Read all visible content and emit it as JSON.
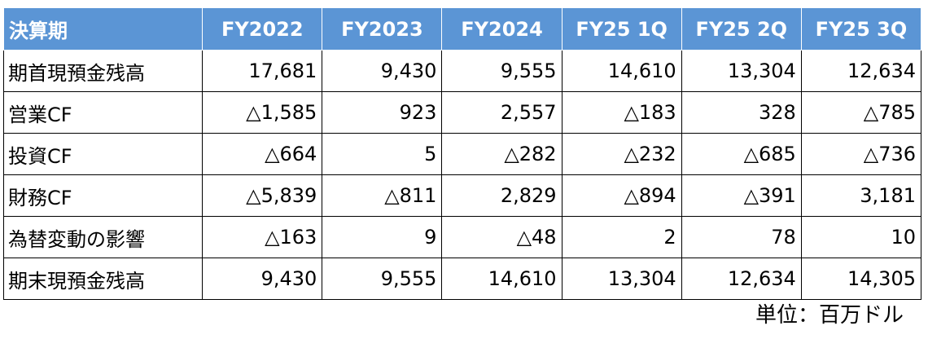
{
  "chart_data": {
    "type": "table",
    "columns": [
      "決算期",
      "FY2022",
      "FY2023",
      "FY2024",
      "FY25 1Q",
      "FY25 2Q",
      "FY25 3Q"
    ],
    "rows": [
      {
        "label": "期首現預金残高",
        "values": [
          "17,681",
          "9,430",
          "9,555",
          "14,610",
          "13,304",
          "12,634"
        ]
      },
      {
        "label": "営業CF",
        "values": [
          "△1,585",
          "923",
          "2,557",
          "△183",
          "328",
          "△785"
        ]
      },
      {
        "label": "投資CF",
        "values": [
          "△664",
          "5",
          "△282",
          "△232",
          "△685",
          "△736"
        ]
      },
      {
        "label": "財務CF",
        "values": [
          "△5,839",
          "△811",
          "2,829",
          "△894",
          "△391",
          "3,181"
        ]
      },
      {
        "label": "為替変動の影響",
        "values": [
          "△163",
          "9",
          "△48",
          "2",
          "78",
          "10"
        ]
      },
      {
        "label": "期末現預金残高",
        "values": [
          "9,430",
          "9,555",
          "14,610",
          "13,304",
          "12,634",
          "14,305"
        ]
      }
    ],
    "unit_note": "単位：百万ドル",
    "colors": {
      "header_bg": "#5b95d5",
      "header_text": "#ffffff",
      "border": "#000000"
    }
  }
}
